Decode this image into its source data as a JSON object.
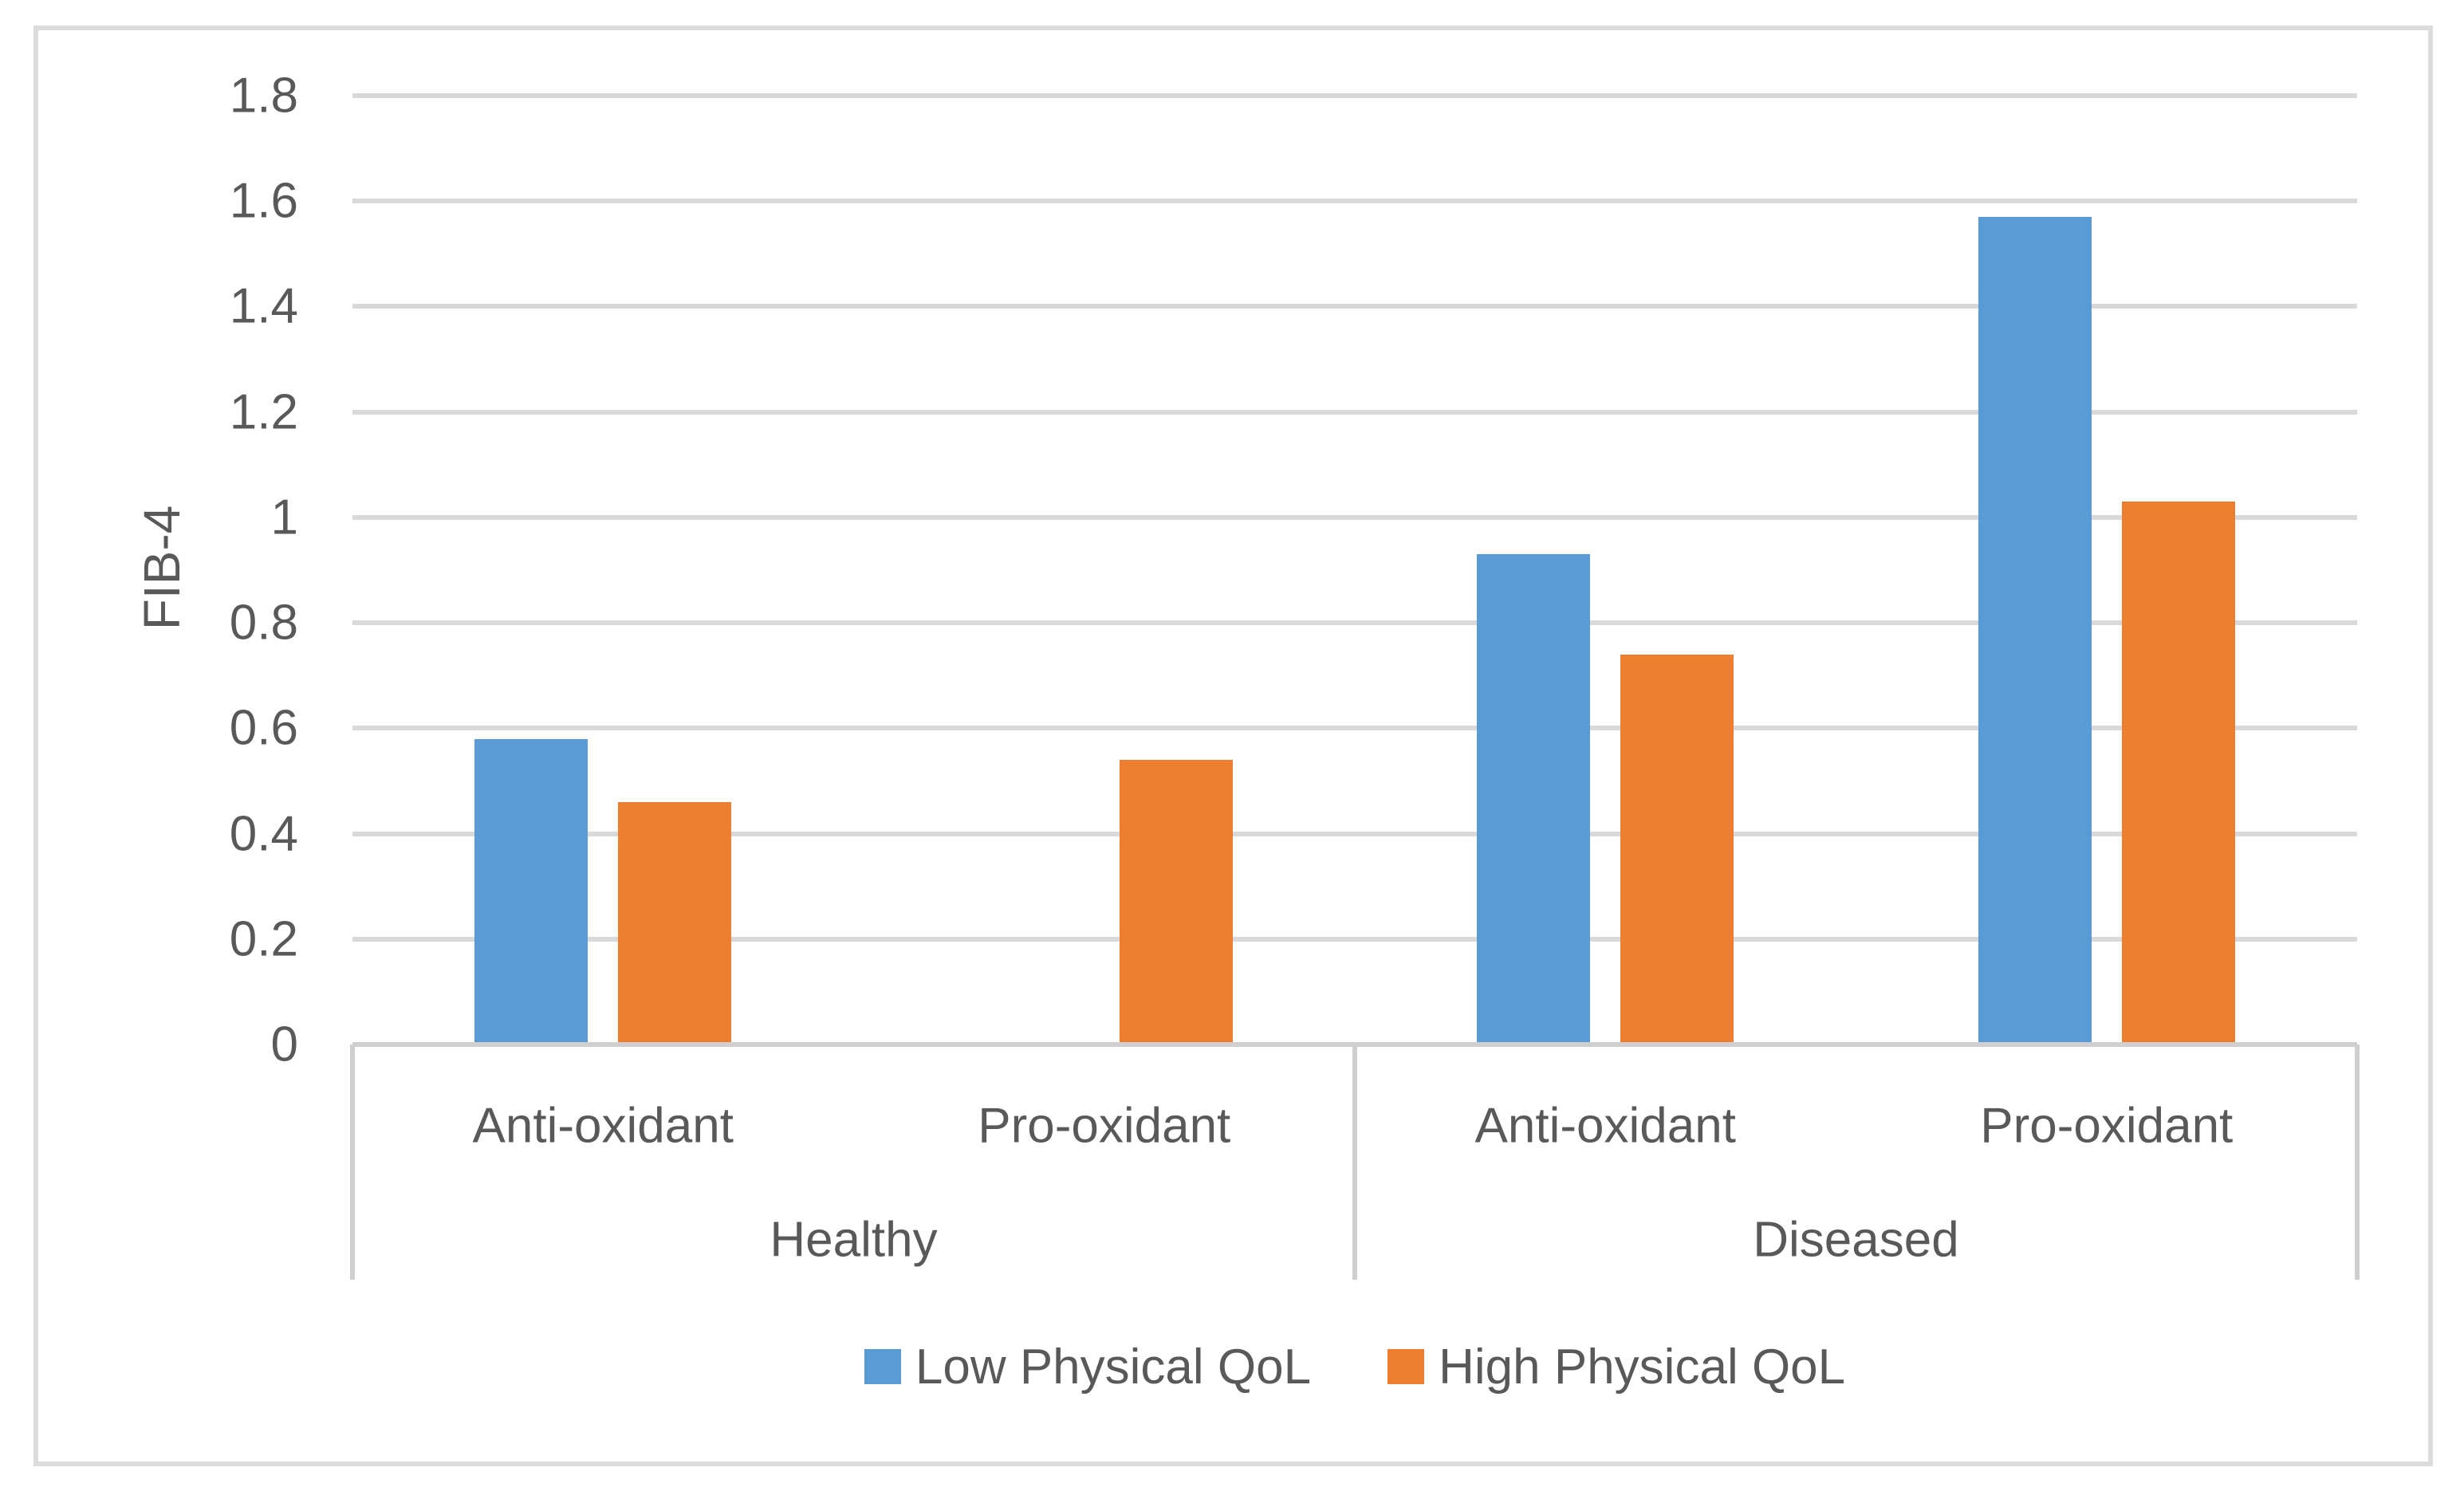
{
  "chart_data": {
    "type": "bar",
    "title": "",
    "xlabel": "",
    "ylabel": "FIB-4",
    "ylim": [
      0,
      1.8
    ],
    "ytick_step": 0.2,
    "yticks": [
      "0",
      "0.2",
      "0.4",
      "0.6",
      "0.8",
      "1",
      "1.2",
      "1.4",
      "1.6",
      "1.8"
    ],
    "grid": true,
    "legend_position": "bottom",
    "groups": [
      {
        "label": "Healthy",
        "categories": [
          "Anti-oxidant",
          "Pro-oxidant"
        ]
      },
      {
        "label": "Diseased",
        "categories": [
          "Anti-oxidant",
          "Pro-oxidant"
        ]
      }
    ],
    "categories": [
      "Anti-oxidant",
      "Pro-oxidant",
      "Anti-oxidant",
      "Pro-oxidant"
    ],
    "series": [
      {
        "name": "Low Physical QoL",
        "color": "#5B9BD5",
        "values": [
          0.58,
          null,
          0.93,
          1.57
        ]
      },
      {
        "name": "High Physical QoL",
        "color": "#ED7D31",
        "values": [
          0.46,
          0.54,
          0.74,
          1.03
        ]
      }
    ],
    "colors": {
      "gridline": "#D9D9D9",
      "axis_line": "#D0CECE",
      "text": "#595959",
      "frame_border": "#DCDCDC",
      "background": "#FFFFFF"
    }
  }
}
